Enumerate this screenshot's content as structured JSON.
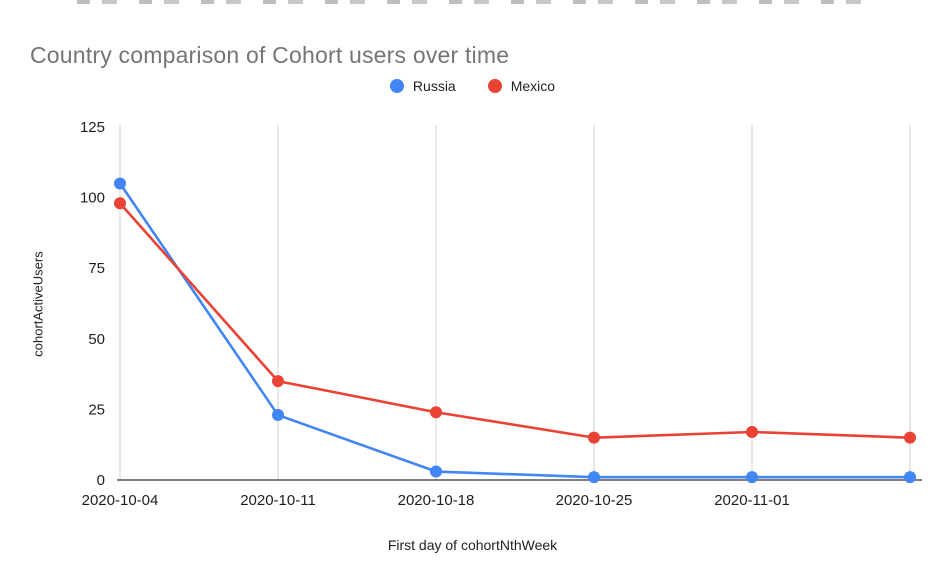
{
  "chart_data": {
    "type": "line",
    "title": "Country comparison of Cohort users over time",
    "xlabel": "First day of cohortNthWeek",
    "ylabel": "cohortActiveUsers",
    "categories": [
      "2020-10-04",
      "2020-10-11",
      "2020-10-18",
      "2020-10-25",
      "2020-11-01",
      ""
    ],
    "series": [
      {
        "name": "Russia",
        "color": "#4285F4",
        "values": [
          105,
          23,
          3,
          1,
          1,
          1
        ]
      },
      {
        "name": "Mexico",
        "color": "#EA4335",
        "values": [
          98,
          35,
          24,
          15,
          17,
          15
        ]
      }
    ],
    "y_ticks": [
      0,
      25,
      50,
      75,
      100,
      125
    ],
    "ylim": [
      0,
      125
    ],
    "grid": "vertical-only",
    "legend_position": "top-center",
    "colors": {
      "title_text": "#757575",
      "axis_text": "#1f1f1f",
      "gridline": "#d0d0d0",
      "axis_line": "#333333",
      "background": "#ffffff"
    }
  }
}
